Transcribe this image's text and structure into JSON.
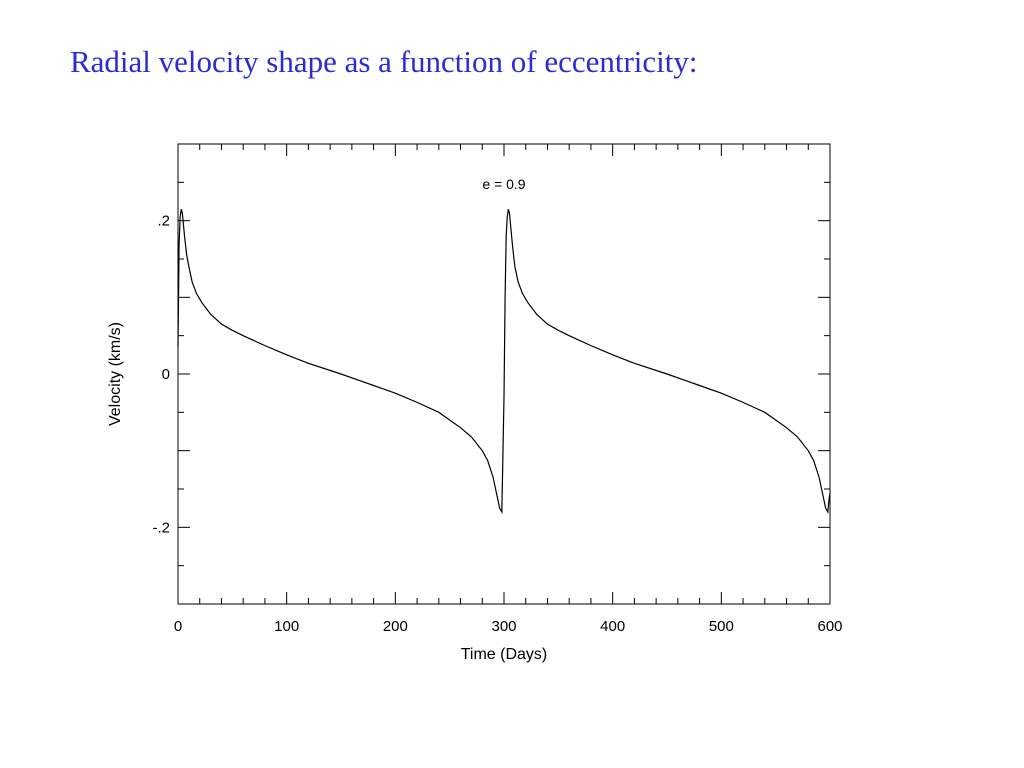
{
  "slide": {
    "title": "Radial velocity shape as a function of eccentricity:"
  },
  "chart_data": {
    "type": "line",
    "title": "",
    "annotation": "e = 0.9",
    "xlabel": "Time (Days)",
    "ylabel": "Velocity (km/s)",
    "xlim": [
      0,
      600
    ],
    "ylim": [
      -0.3,
      0.3
    ],
    "xticks": [
      0,
      100,
      200,
      300,
      400,
      500,
      600
    ],
    "xtick_labels": [
      "0",
      "100",
      "200",
      "300",
      "400",
      "500",
      "600"
    ],
    "yticks": [
      -0.2,
      0,
      0.2
    ],
    "ytick_labels": [
      "-.2",
      "0",
      ".2"
    ],
    "grid": false,
    "line_color": "#000000",
    "series": [
      {
        "x": [
          0,
          1,
          2,
          3,
          4,
          5,
          6,
          8,
          10,
          13,
          17,
          22,
          30,
          40,
          50,
          60,
          80,
          100,
          120,
          150,
          180,
          200,
          220,
          240,
          260,
          270,
          280,
          285,
          290,
          293,
          296,
          298,
          300,
          301,
          302,
          303,
          304,
          305,
          306,
          308,
          310,
          313,
          317,
          322,
          330,
          340,
          350,
          360,
          380,
          400,
          420,
          450,
          480,
          500,
          520,
          540,
          560,
          570,
          580,
          585,
          590,
          593,
          596,
          598,
          599,
          600
        ],
        "y": [
          0.035,
          0.17,
          0.205,
          0.215,
          0.21,
          0.195,
          0.18,
          0.155,
          0.14,
          0.12,
          0.105,
          0.093,
          0.078,
          0.065,
          0.057,
          0.05,
          0.037,
          0.025,
          0.014,
          0.0,
          -0.015,
          -0.025,
          -0.037,
          -0.05,
          -0.07,
          -0.082,
          -0.1,
          -0.113,
          -0.135,
          -0.155,
          -0.175,
          -0.18,
          -0.03,
          0.1,
          0.18,
          0.205,
          0.215,
          0.21,
          0.195,
          0.165,
          0.14,
          0.12,
          0.105,
          0.093,
          0.078,
          0.065,
          0.057,
          0.05,
          0.037,
          0.025,
          0.014,
          0.0,
          -0.015,
          -0.025,
          -0.037,
          -0.05,
          -0.07,
          -0.082,
          -0.1,
          -0.113,
          -0.135,
          -0.155,
          -0.175,
          -0.18,
          -0.165,
          -0.155
        ]
      }
    ]
  }
}
